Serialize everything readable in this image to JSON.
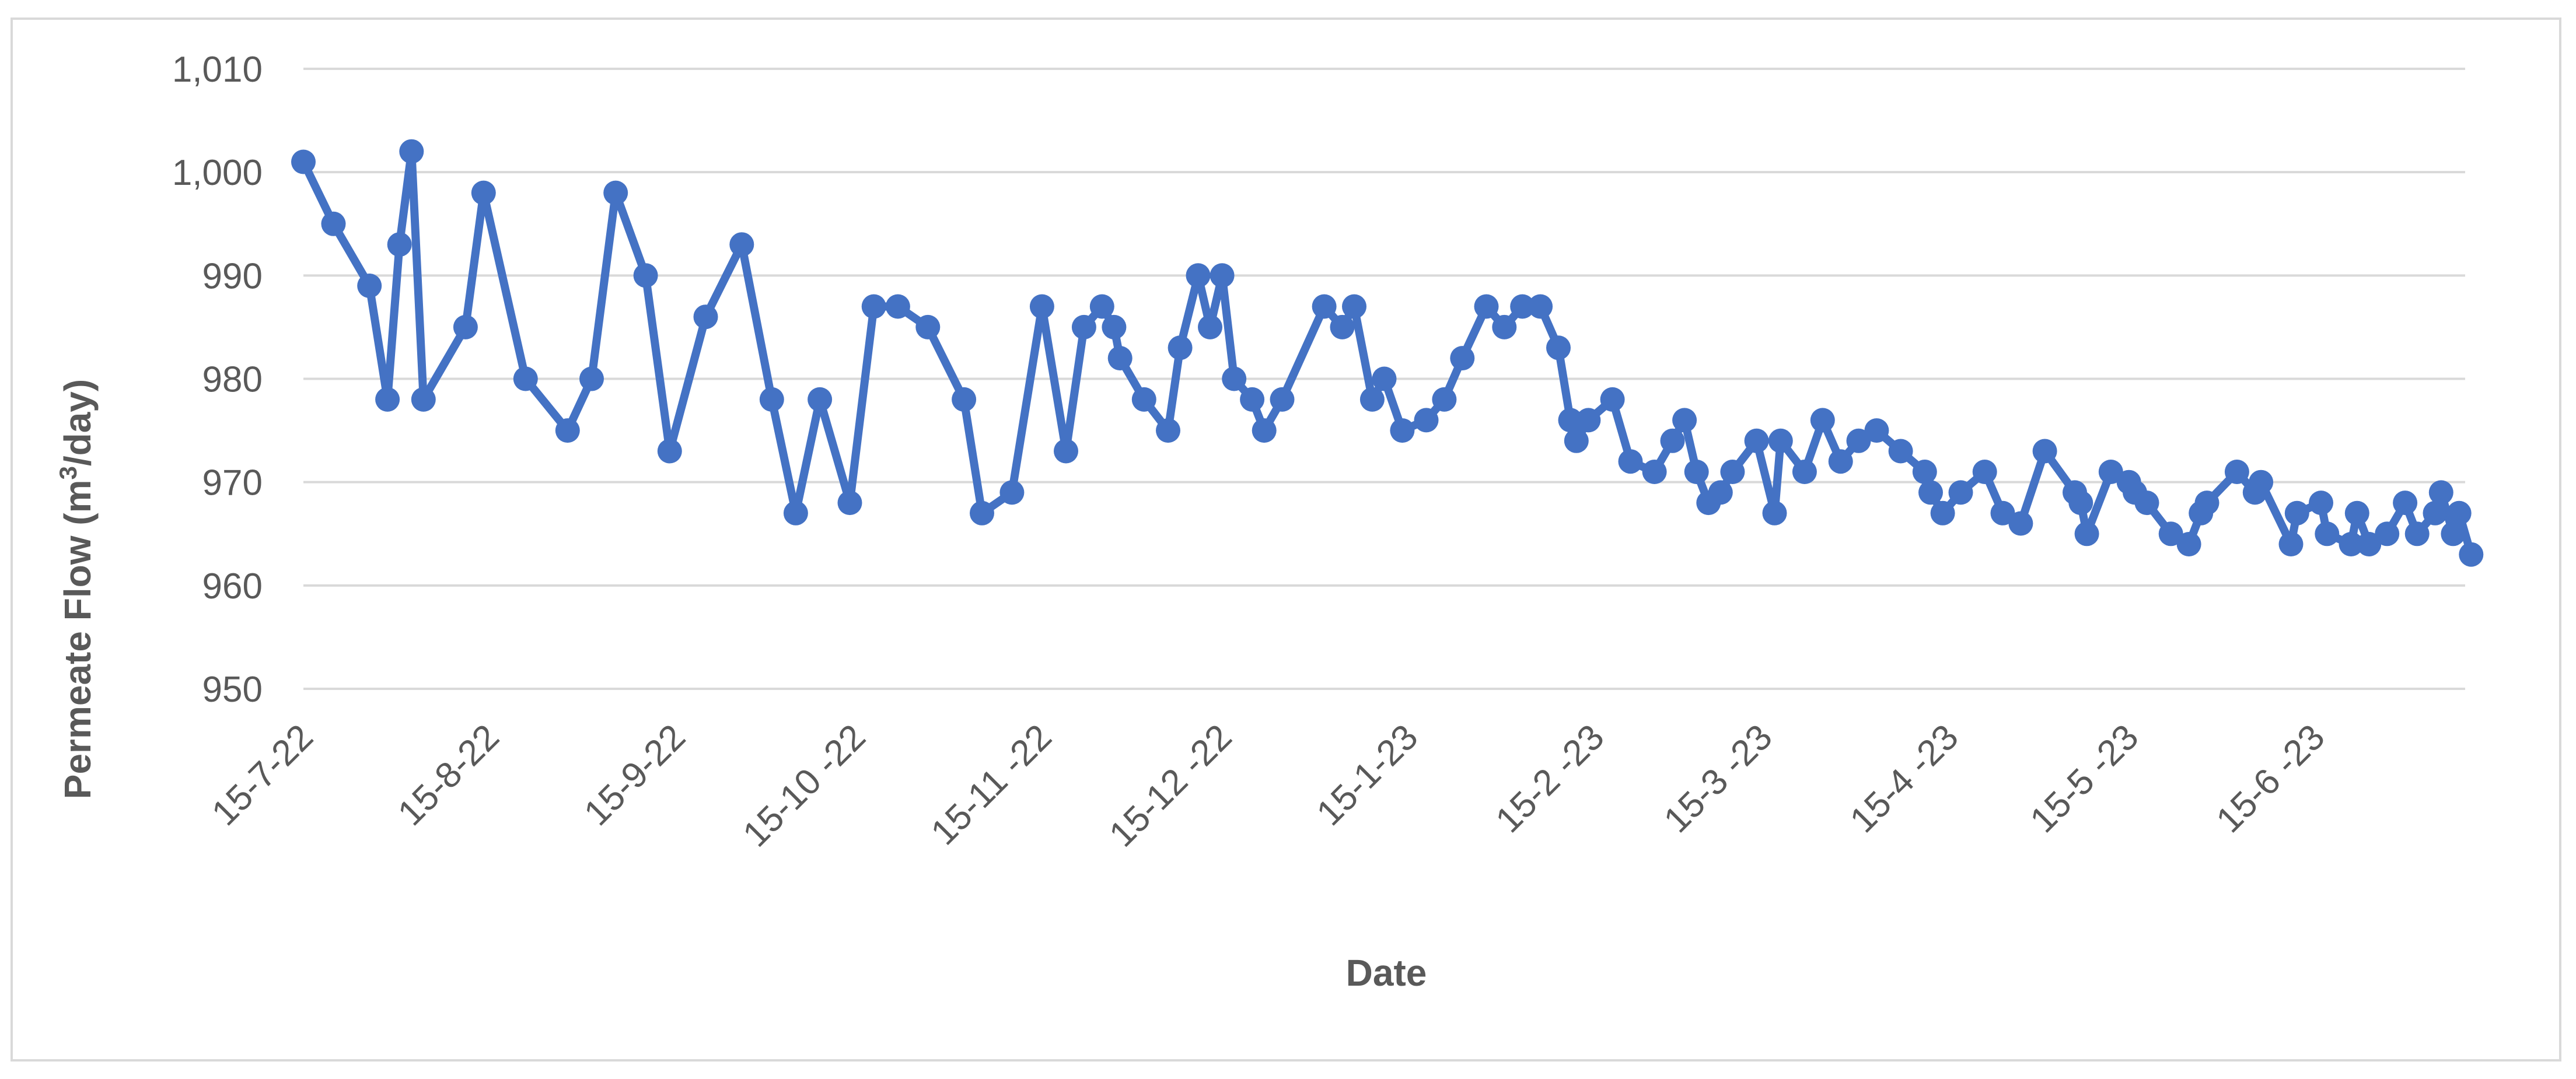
{
  "chart_data": {
    "type": "line",
    "title": "",
    "xlabel": "Date",
    "ylabel_main": "Permeate Flow (m",
    "ylabel_sup": "3",
    "ylabel_tail": "/day)",
    "ylim": [
      950,
      1010
    ],
    "yticks": [
      "950",
      "960",
      "970",
      "980",
      "990",
      "1,000",
      "1,010"
    ],
    "ytick_values": [
      950,
      960,
      970,
      980,
      990,
      1000,
      1010
    ],
    "xlim": [
      "2022-07-15",
      "2023-07-10"
    ],
    "xticks": [
      {
        "label": "15-7-22",
        "date": "2022-07-15"
      },
      {
        "label": "15-8-22",
        "date": "2022-08-15"
      },
      {
        "label": "15-9-22",
        "date": "2022-09-15"
      },
      {
        "label": "15-10 -22",
        "date": "2022-10-15"
      },
      {
        "label": "15-11 -22",
        "date": "2022-11-15"
      },
      {
        "label": "15-12 -22",
        "date": "2022-12-15"
      },
      {
        "label": "15-1-23",
        "date": "2023-01-15"
      },
      {
        "label": "15-2 -23",
        "date": "2023-02-15"
      },
      {
        "label": "15-3 -23",
        "date": "2023-03-15"
      },
      {
        "label": "15-4 -23",
        "date": "2023-04-15"
      },
      {
        "label": "15-5 -23",
        "date": "2023-05-15"
      },
      {
        "label": "15-6 -23",
        "date": "2023-06-15"
      }
    ],
    "grid": true,
    "legend": "none",
    "line_color": "#4472c4",
    "gridline_color": "#d9d9d9",
    "series": [
      {
        "name": "",
        "points": [
          [
            "2022-07-15",
            1001
          ],
          [
            "2022-07-20",
            995
          ],
          [
            "2022-07-26",
            989
          ],
          [
            "2022-07-29",
            978
          ],
          [
            "2022-07-31",
            993
          ],
          [
            "2022-08-02",
            1002
          ],
          [
            "2022-08-04",
            978
          ],
          [
            "2022-08-11",
            985
          ],
          [
            "2022-08-14",
            998
          ],
          [
            "2022-08-21",
            980
          ],
          [
            "2022-08-28",
            975
          ],
          [
            "2022-09-01",
            980
          ],
          [
            "2022-09-05",
            998
          ],
          [
            "2022-09-10",
            990
          ],
          [
            "2022-09-14",
            973
          ],
          [
            "2022-09-20",
            986
          ],
          [
            "2022-09-26",
            993
          ],
          [
            "2022-10-01",
            978
          ],
          [
            "2022-10-05",
            967
          ],
          [
            "2022-10-09",
            978
          ],
          [
            "2022-10-14",
            968
          ],
          [
            "2022-10-18",
            987
          ],
          [
            "2022-10-22",
            987
          ],
          [
            "2022-10-27",
            985
          ],
          [
            "2022-11-02",
            978
          ],
          [
            "2022-11-05",
            967
          ],
          [
            "2022-11-10",
            969
          ],
          [
            "2022-11-15",
            987
          ],
          [
            "2022-11-19",
            973
          ],
          [
            "2022-11-22",
            985
          ],
          [
            "2022-11-25",
            987
          ],
          [
            "2022-11-27",
            985
          ],
          [
            "2022-11-28",
            982
          ],
          [
            "2022-12-02",
            978
          ],
          [
            "2022-12-06",
            975
          ],
          [
            "2022-12-08",
            983
          ],
          [
            "2022-12-11",
            990
          ],
          [
            "2022-12-13",
            985
          ],
          [
            "2022-12-15",
            990
          ],
          [
            "2022-12-17",
            980
          ],
          [
            "2022-12-20",
            978
          ],
          [
            "2022-12-22",
            975
          ],
          [
            "2022-12-25",
            978
          ],
          [
            "2023-01-01",
            987
          ],
          [
            "2023-01-04",
            985
          ],
          [
            "2023-01-06",
            987
          ],
          [
            "2023-01-09",
            978
          ],
          [
            "2023-01-11",
            980
          ],
          [
            "2023-01-14",
            975
          ],
          [
            "2023-01-18",
            976
          ],
          [
            "2023-01-21",
            978
          ],
          [
            "2023-01-24",
            982
          ],
          [
            "2023-01-28",
            987
          ],
          [
            "2023-01-31",
            985
          ],
          [
            "2023-02-03",
            987
          ],
          [
            "2023-02-06",
            987
          ],
          [
            "2023-02-09",
            983
          ],
          [
            "2023-02-11",
            976
          ],
          [
            "2023-02-12",
            974
          ],
          [
            "2023-02-14",
            976
          ],
          [
            "2023-02-18",
            978
          ],
          [
            "2023-02-21",
            972
          ],
          [
            "2023-02-25",
            971
          ],
          [
            "2023-02-28",
            974
          ],
          [
            "2023-03-02",
            976
          ],
          [
            "2023-03-04",
            971
          ],
          [
            "2023-03-06",
            968
          ],
          [
            "2023-03-08",
            969
          ],
          [
            "2023-03-10",
            971
          ],
          [
            "2023-03-14",
            974
          ],
          [
            "2023-03-17",
            967
          ],
          [
            "2023-03-18",
            974
          ],
          [
            "2023-03-22",
            971
          ],
          [
            "2023-03-25",
            976
          ],
          [
            "2023-03-28",
            972
          ],
          [
            "2023-03-31",
            974
          ],
          [
            "2023-04-03",
            975
          ],
          [
            "2023-04-07",
            973
          ],
          [
            "2023-04-11",
            971
          ],
          [
            "2023-04-12",
            969
          ],
          [
            "2023-04-14",
            967
          ],
          [
            "2023-04-17",
            969
          ],
          [
            "2023-04-21",
            971
          ],
          [
            "2023-04-24",
            967
          ],
          [
            "2023-04-27",
            966
          ],
          [
            "2023-05-01",
            973
          ],
          [
            "2023-05-06",
            969
          ],
          [
            "2023-05-07",
            968
          ],
          [
            "2023-05-08",
            965
          ],
          [
            "2023-05-12",
            971
          ],
          [
            "2023-05-15",
            970
          ],
          [
            "2023-05-16",
            969
          ],
          [
            "2023-05-18",
            968
          ],
          [
            "2023-05-22",
            965
          ],
          [
            "2023-05-25",
            964
          ],
          [
            "2023-05-27",
            967
          ],
          [
            "2023-05-28",
            968
          ],
          [
            "2023-06-02",
            971
          ],
          [
            "2023-06-05",
            969
          ],
          [
            "2023-06-06",
            970
          ],
          [
            "2023-06-11",
            964
          ],
          [
            "2023-06-12",
            967
          ],
          [
            "2023-06-16",
            968
          ],
          [
            "2023-06-17",
            965
          ],
          [
            "2023-06-21",
            964
          ],
          [
            "2023-06-22",
            967
          ],
          [
            "2023-06-24",
            964
          ],
          [
            "2023-06-27",
            965
          ],
          [
            "2023-06-30",
            968
          ],
          [
            "2023-07-02",
            965
          ],
          [
            "2023-07-05",
            967
          ],
          [
            "2023-07-06",
            969
          ],
          [
            "2023-07-08",
            965
          ],
          [
            "2023-07-09",
            967
          ],
          [
            "2023-07-11",
            963
          ]
        ]
      }
    ]
  }
}
